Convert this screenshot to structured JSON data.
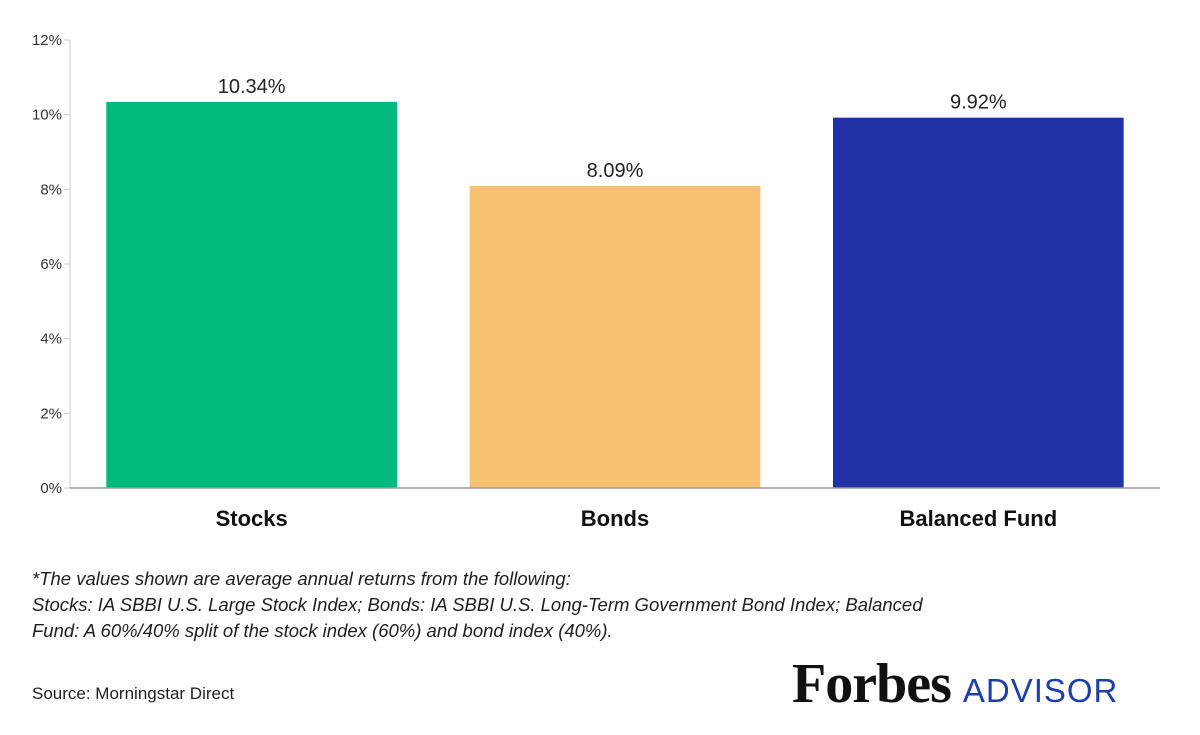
{
  "chart_data": {
    "type": "bar",
    "categories": [
      "Stocks",
      "Bonds",
      "Balanced Fund"
    ],
    "values": [
      10.34,
      8.09,
      9.92
    ],
    "data_labels": [
      "10.34%",
      "8.09%",
      "9.92%"
    ],
    "colors": [
      "#00b97e",
      "#f8c172",
      "#2132a4"
    ],
    "ylim": [
      0,
      12
    ],
    "yticks": [
      0,
      2,
      4,
      6,
      8,
      10,
      12
    ],
    "ytick_labels": [
      "0%",
      "2%",
      "4%",
      "6%",
      "8%",
      "10%",
      "12%"
    ],
    "grid": false,
    "title": "",
    "xlabel": "",
    "ylabel": ""
  },
  "footnote": {
    "lines": [
      "*The values shown are average annual returns from the following:",
      "Stocks: IA SBBI U.S. Large Stock Index; Bonds: IA SBBI U.S. Long-Term Government Bond Index; Balanced",
      "Fund: A 60%/40% split of the stock index (60%) and bond index (40%)."
    ]
  },
  "source": "Source: Morningstar Direct",
  "logo": {
    "brand": "Forbes",
    "suffix": "ADVISOR"
  }
}
